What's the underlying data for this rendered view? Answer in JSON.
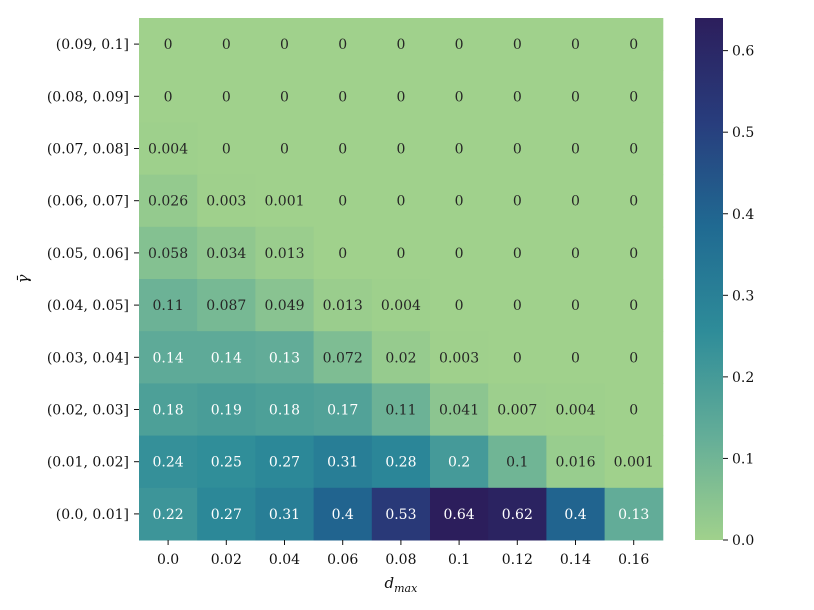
{
  "chart_data": {
    "type": "heatmap",
    "title": "",
    "xlabel": "d",
    "xlabel_sub": "max",
    "ylabel": "γ̄",
    "x_categories": [
      "0.0",
      "0.02",
      "0.04",
      "0.06",
      "0.08",
      "0.1",
      "0.12",
      "0.14",
      "0.16"
    ],
    "y_categories": [
      "(0.09, 0.1]",
      "(0.08, 0.09]",
      "(0.07, 0.08]",
      "(0.06, 0.07]",
      "(0.05, 0.06]",
      "(0.04, 0.05]",
      "(0.03, 0.04]",
      "(0.02, 0.03]",
      "(0.01, 0.02]",
      "(0.0, 0.01]"
    ],
    "values": [
      [
        0,
        0,
        0,
        0,
        0,
        0,
        0,
        0,
        0
      ],
      [
        0,
        0,
        0,
        0,
        0,
        0,
        0,
        0,
        0
      ],
      [
        0.004,
        0,
        0,
        0,
        0,
        0,
        0,
        0,
        0
      ],
      [
        0.026,
        0.003,
        0.001,
        0,
        0,
        0,
        0,
        0,
        0
      ],
      [
        0.058,
        0.034,
        0.013,
        0,
        0,
        0,
        0,
        0,
        0
      ],
      [
        0.11,
        0.087,
        0.049,
        0.013,
        0.004,
        0,
        0,
        0,
        0
      ],
      [
        0.14,
        0.14,
        0.13,
        0.072,
        0.02,
        0.003,
        0,
        0,
        0
      ],
      [
        0.18,
        0.19,
        0.18,
        0.17,
        0.11,
        0.041,
        0.007,
        0.004,
        0
      ],
      [
        0.24,
        0.25,
        0.27,
        0.31,
        0.28,
        0.2,
        0.1,
        0.016,
        0.001
      ],
      [
        0.22,
        0.27,
        0.31,
        0.4,
        0.53,
        0.64,
        0.62,
        0.4,
        0.13
      ]
    ],
    "colorbar": {
      "min": 0.0,
      "max": 0.64,
      "ticks": [
        "0.0",
        "0.1",
        "0.2",
        "0.3",
        "0.4",
        "0.5",
        "0.6"
      ],
      "colormap": [
        "#a0d18c",
        "#63ad98",
        "#2e8c99",
        "#206a92",
        "#283d7d",
        "#2c1e5c"
      ]
    },
    "legend": "colorbar-right",
    "grid": false
  }
}
